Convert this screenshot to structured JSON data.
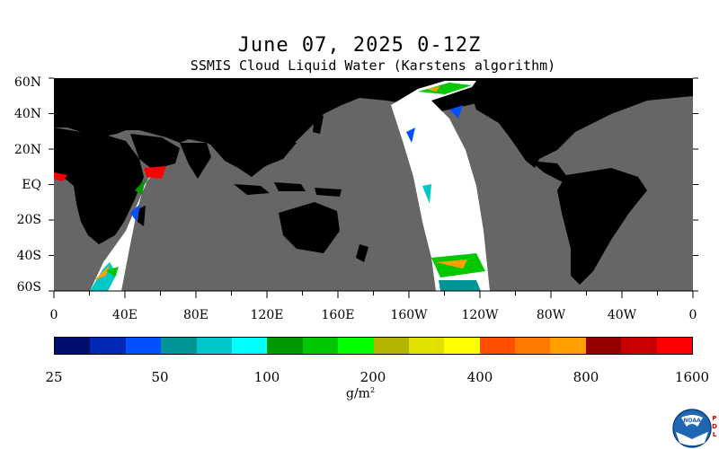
{
  "title": "June 07, 2025 0-12Z",
  "subtitle": "SSMIS Cloud Liquid Water (Karstens algorithm)",
  "map": {
    "lat_labels": [
      "60N",
      "40N",
      "20N",
      "EQ",
      "20S",
      "40S",
      "60S"
    ],
    "lat_values": [
      60,
      40,
      20,
      0,
      -20,
      -40,
      -60
    ],
    "lon_labels": [
      "0",
      "40E",
      "80E",
      "120E",
      "160E",
      "160W",
      "120W",
      "80W",
      "40W",
      "0"
    ],
    "lon_values": [
      0,
      40,
      80,
      120,
      160,
      200,
      240,
      280,
      320,
      360
    ],
    "lat_range": [
      -60,
      60
    ],
    "lon_range": [
      0,
      360
    ],
    "land_color": "#000000",
    "ocean_nodata_color": "#666666"
  },
  "colorbar": {
    "labels": [
      "25",
      "50",
      "100",
      "200",
      "400",
      "800",
      "1600"
    ],
    "colors": [
      "#000e6e",
      "#0028b4",
      "#0050ff",
      "#009696",
      "#00c8c8",
      "#00ffff",
      "#009600",
      "#00c800",
      "#00ff00",
      "#b4b400",
      "#e1e100",
      "#ffff00",
      "#ff5000",
      "#ff7800",
      "#ffa000",
      "#960000",
      "#c80000",
      "#ff0000"
    ],
    "units_base": "g/m",
    "units_exp": "2"
  },
  "logo": {
    "text": "NOAA",
    "side_text": [
      "P",
      "D",
      "L"
    ]
  }
}
